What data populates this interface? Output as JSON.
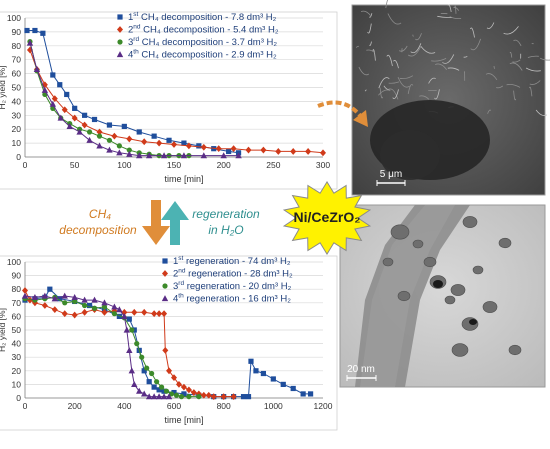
{
  "colors": {
    "s1": "#1f4e9c",
    "s2": "#d03a1a",
    "s3": "#3c8a2a",
    "s4": "#5a2d86",
    "grid": "#d9d9d9",
    "axis": "#7f7f7f",
    "arrow_down": "#e08e3a",
    "arrow_up": "#4cb3b3",
    "arrow_orange": "#e08e3a",
    "starburst_fill": "#fff200",
    "starburst_stroke": "#7f7f7f"
  },
  "chart_data": [
    {
      "type": "line",
      "xlabel": "time [min]",
      "ylabel": "H₂ yield [%]",
      "xlim": [
        0,
        300
      ],
      "ylim": [
        0,
        100
      ],
      "xticks": [
        "0",
        "50",
        "100",
        "150",
        "200",
        "250",
        "300"
      ],
      "yticks": [
        "0",
        "10",
        "20",
        "30",
        "40",
        "50",
        "60",
        "70",
        "80",
        "90",
        "100"
      ],
      "grid": true,
      "legend_position": "top-right",
      "series": [
        {
          "name_sup": "st",
          "name_main": "CH₄ decomposition - 7.8 dm³ H₂",
          "name_pre": "1",
          "marker": "square",
          "x": [
            2,
            10,
            18,
            28,
            35,
            42,
            50,
            60,
            70,
            85,
            100,
            115,
            130,
            145,
            160,
            175,
            190,
            205,
            215
          ],
          "y": [
            91,
            91,
            89,
            59,
            52,
            45,
            35,
            30,
            27,
            23,
            22,
            18,
            15,
            12,
            10,
            8,
            6,
            4,
            3
          ]
        },
        {
          "name_sup": "nd",
          "name_main": "CH₄ decomposition - 5.4 dm³ H₂",
          "name_pre": "2",
          "marker": "diamond",
          "x": [
            5,
            12,
            20,
            30,
            40,
            50,
            60,
            75,
            90,
            105,
            120,
            135,
            150,
            165,
            180,
            195,
            210,
            225,
            240,
            255,
            270,
            285,
            300
          ],
          "y": [
            77,
            63,
            52,
            42,
            34,
            28,
            23,
            18,
            15,
            13,
            11,
            10,
            9,
            8,
            7,
            6,
            6,
            5,
            5,
            4,
            4,
            4,
            3
          ]
        },
        {
          "name_sup": "rd",
          "name_main": "CH₄ decomposition - 3.7 dm³ H₂",
          "name_pre": "3",
          "marker": "circle",
          "x": [
            5,
            12,
            20,
            28,
            36,
            45,
            55,
            65,
            75,
            85,
            95,
            105,
            115,
            125,
            135,
            145,
            155,
            165
          ],
          "y": [
            83,
            62,
            45,
            35,
            28,
            24,
            20,
            18,
            15,
            12,
            8,
            5,
            3,
            2,
            1,
            1,
            1,
            1
          ]
        },
        {
          "name_sup": "th",
          "name_main": "CH₄ decomposition - 2.9 dm³ H₂",
          "name_pre": "4",
          "marker": "triangle",
          "x": [
            5,
            12,
            20,
            28,
            36,
            45,
            55,
            65,
            75,
            85,
            95,
            105,
            115,
            125,
            140,
            160,
            180,
            200,
            215
          ],
          "y": [
            82,
            63,
            48,
            38,
            28,
            22,
            18,
            12,
            8,
            5,
            3,
            2,
            1,
            1,
            1,
            1,
            1,
            1,
            1
          ]
        }
      ]
    },
    {
      "type": "line",
      "xlabel": "time [min]",
      "ylabel": "H₂ yield [%]",
      "xlim": [
        0,
        1200
      ],
      "ylim": [
        0,
        100
      ],
      "xticks": [
        "0",
        "200",
        "400",
        "600",
        "800",
        "1000",
        "1200"
      ],
      "yticks": [
        "0",
        "10",
        "20",
        "30",
        "40",
        "50",
        "60",
        "70",
        "80",
        "90",
        "100"
      ],
      "grid": true,
      "legend_position": "top-right",
      "series": [
        {
          "name_sup": "st",
          "name_main": "regeneration - 74 dm³ H₂",
          "name_pre": "1",
          "marker": "square",
          "x": [
            0,
            40,
            80,
            100,
            140,
            200,
            260,
            320,
            380,
            420,
            440,
            460,
            480,
            500,
            520,
            540,
            560,
            600,
            640,
            700,
            760,
            800,
            840,
            880,
            900,
            910,
            930,
            960,
            1000,
            1040,
            1080,
            1120,
            1150
          ],
          "y": [
            72,
            73,
            74,
            80,
            73,
            71,
            68,
            65,
            60,
            58,
            50,
            35,
            20,
            12,
            8,
            6,
            5,
            4,
            3,
            2,
            1,
            1,
            1,
            1,
            1,
            27,
            20,
            18,
            14,
            10,
            7,
            3,
            3
          ]
        },
        {
          "name_sup": "nd",
          "name_main": "regeneration - 28 dm³ H₂",
          "name_pre": "2",
          "marker": "diamond",
          "x": [
            0,
            20,
            40,
            80,
            120,
            160,
            200,
            240,
            280,
            320,
            360,
            400,
            440,
            480,
            520,
            540,
            560,
            565,
            580,
            600,
            620,
            640,
            660,
            680,
            700,
            720,
            740,
            760,
            800,
            840
          ],
          "y": [
            79,
            72,
            70,
            68,
            65,
            62,
            61,
            63,
            65,
            63,
            64,
            63,
            63,
            63,
            62,
            62,
            62,
            35,
            20,
            15,
            10,
            8,
            6,
            4,
            3,
            2,
            2,
            1,
            1,
            1
          ]
        },
        {
          "name_sup": "rd",
          "name_main": "regeneration - 20 dm³ H₂",
          "name_pre": "3",
          "marker": "circle",
          "x": [
            0,
            40,
            80,
            120,
            160,
            200,
            240,
            280,
            320,
            360,
            400,
            430,
            450,
            470,
            490,
            510,
            530,
            550,
            570,
            590,
            610,
            630,
            660,
            700
          ],
          "y": [
            73,
            72,
            73,
            74,
            70,
            71,
            68,
            66,
            67,
            62,
            59,
            50,
            40,
            30,
            22,
            18,
            12,
            8,
            5,
            3,
            2,
            1,
            1,
            1
          ]
        },
        {
          "name_sup": "th",
          "name_main": "regeneration - 16 dm³ H₂",
          "name_pre": "4",
          "marker": "triangle",
          "x": [
            0,
            40,
            80,
            120,
            160,
            200,
            240,
            280,
            320,
            360,
            380,
            400,
            410,
            420,
            430,
            440,
            460,
            480,
            500,
            520,
            540,
            560,
            580
          ],
          "y": [
            75,
            74,
            75,
            73,
            75,
            74,
            72,
            72,
            70,
            67,
            65,
            60,
            50,
            35,
            20,
            10,
            5,
            3,
            1,
            1,
            1,
            1,
            1
          ]
        }
      ]
    }
  ],
  "arrows": {
    "down_label_1": "CH₄",
    "down_label_2": "decomposition",
    "up_label_1": "regeneration",
    "up_label_2": "in H₂O"
  },
  "catalyst": {
    "label": "Ni/CeZrO₂"
  },
  "micrographs": [
    {
      "scale_label": "5 μm"
    },
    {
      "scale_label": "20 nm"
    }
  ]
}
